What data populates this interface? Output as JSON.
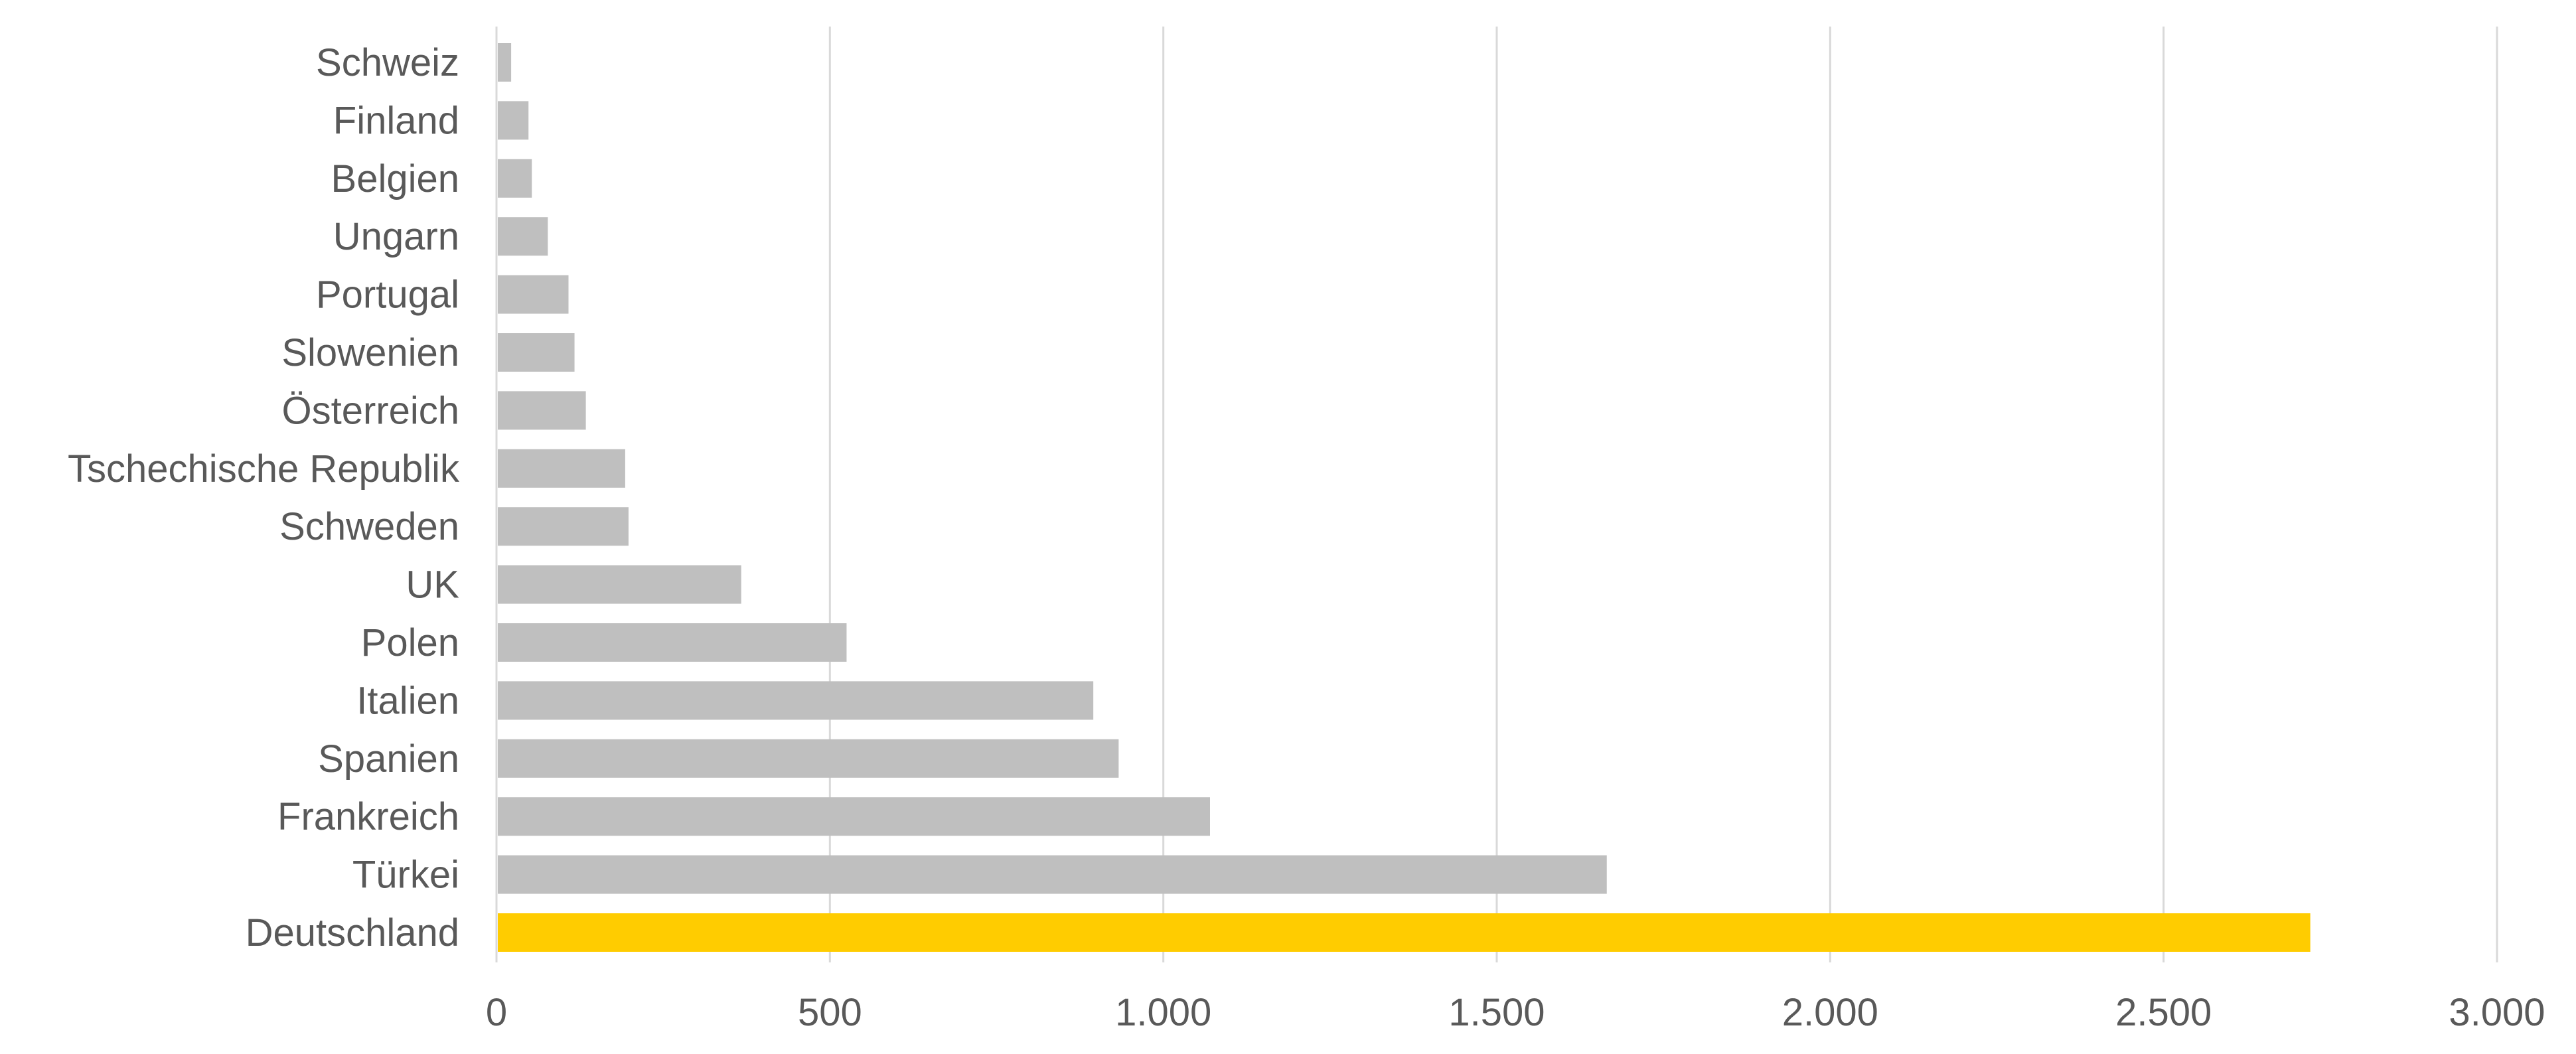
{
  "chart_data": {
    "type": "bar",
    "orientation": "horizontal",
    "categories": [
      "Schweiz",
      "Finland",
      "Belgien",
      "Ungarn",
      "Portugal",
      "Slowenien",
      "Österreich",
      "Tschechische Republik",
      "Schweden",
      "UK",
      "Polen",
      "Italien",
      "Spanien",
      "Frankreich",
      "Türkei",
      "Deutschland"
    ],
    "values": [
      22,
      48,
      53,
      77,
      108,
      117,
      134,
      193,
      198,
      367,
      525,
      895,
      933,
      1070,
      1665,
      2720
    ],
    "highlight_category": "Deutschland",
    "colors": {
      "bar": "#bfbfbf",
      "highlight": "#ffcc00",
      "text": "#595959",
      "grid": "#d9d9d9"
    },
    "xlim": [
      0,
      3000
    ],
    "ticks": [
      0,
      500,
      1000,
      1500,
      2000,
      2500,
      3000
    ],
    "tick_labels": [
      "0",
      "500",
      "1.000",
      "1.500",
      "2.000",
      "2.500",
      "3.000"
    ],
    "grid": true,
    "legend": "none"
  }
}
